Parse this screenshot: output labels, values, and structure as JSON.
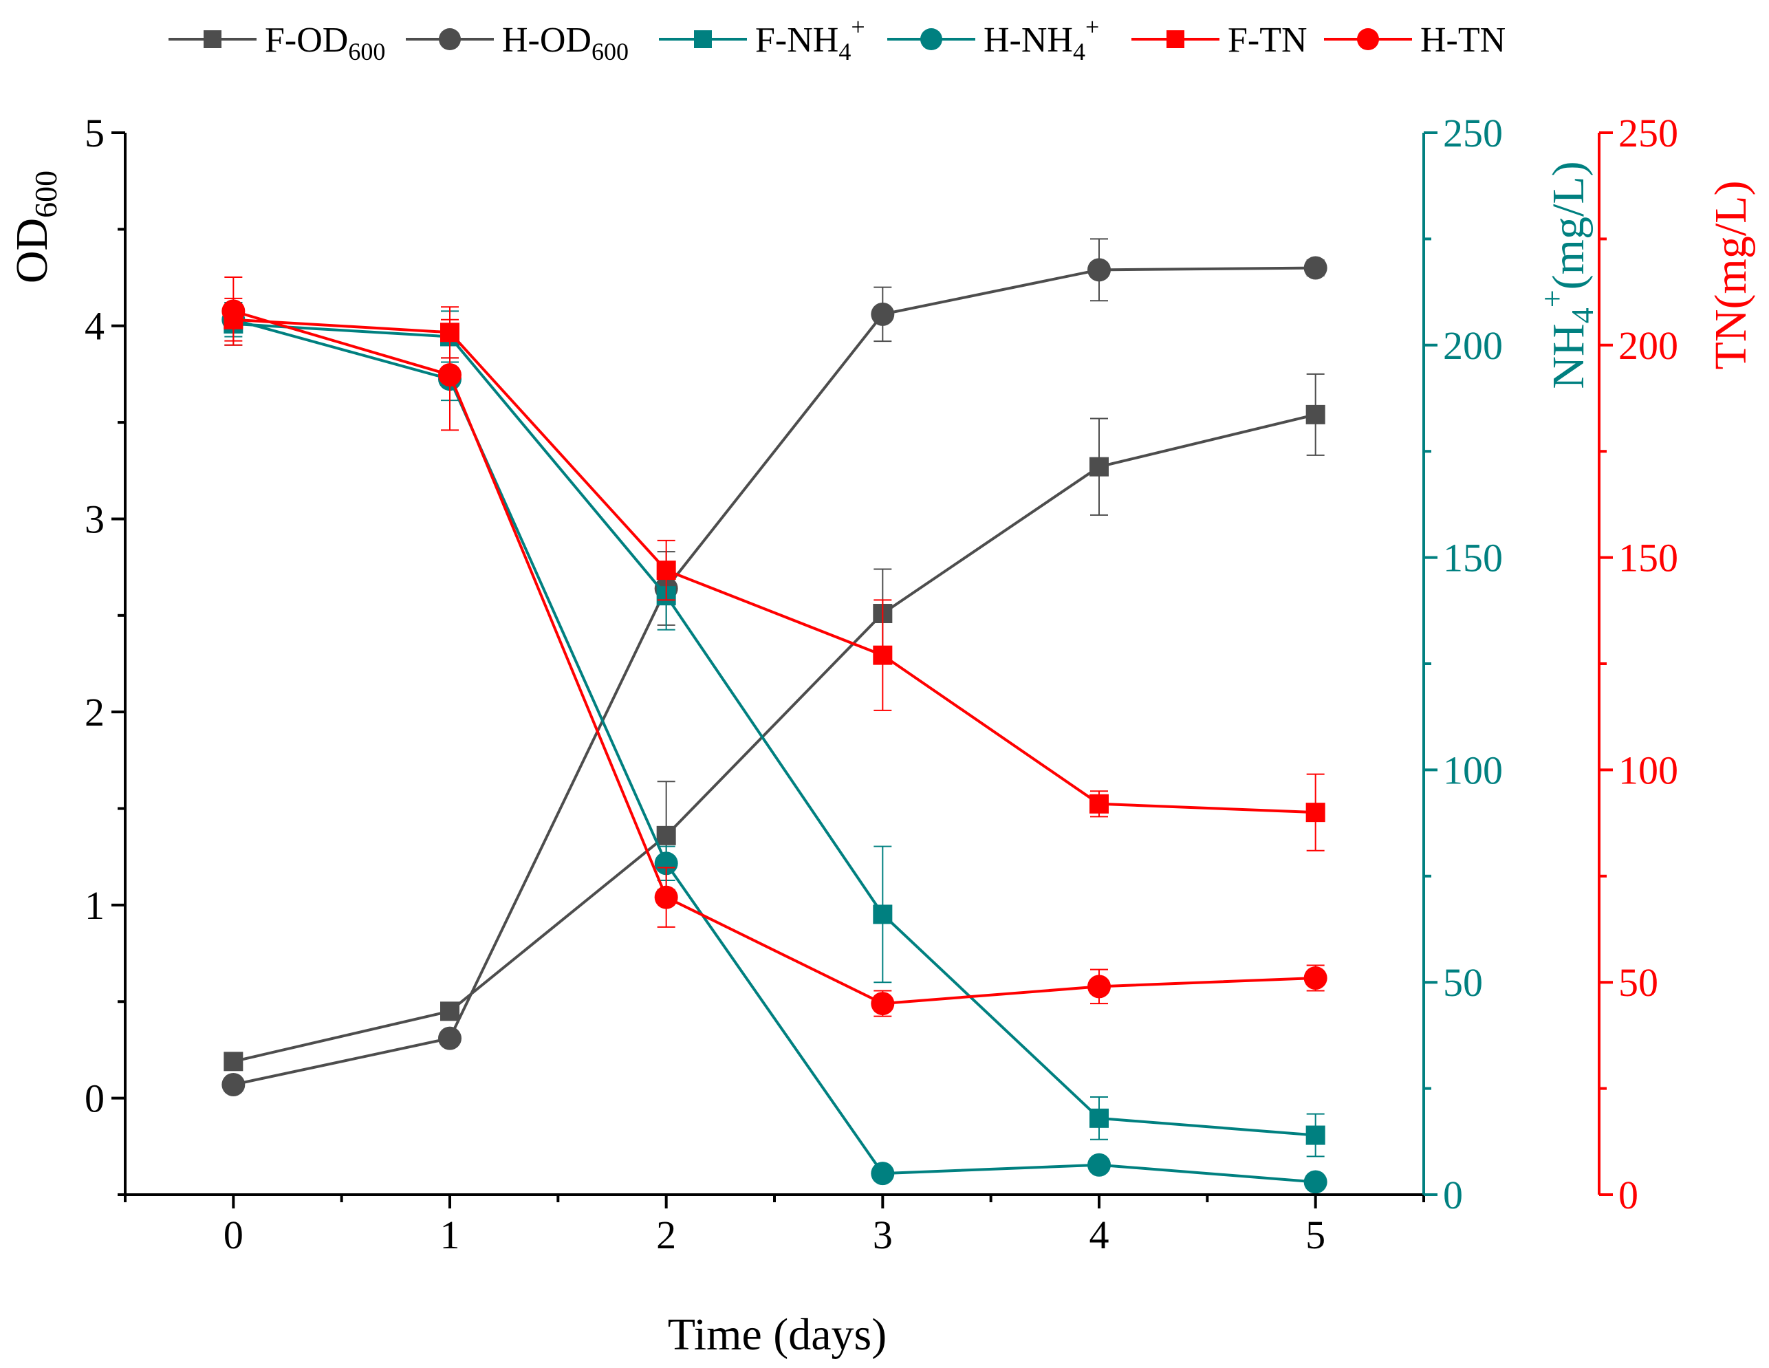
{
  "chart_data": {
    "type": "line",
    "title": "",
    "x": [
      0,
      1,
      2,
      3,
      4,
      5
    ],
    "xlabel": "Time (days)",
    "xlim": [
      -0.5,
      5.5
    ],
    "xticks": [
      "0",
      "1",
      "2",
      "3",
      "4",
      "5"
    ],
    "axes": {
      "left": {
        "label_main": "OD",
        "label_sub": "600",
        "range": [
          -0.5,
          5
        ],
        "ticks": [
          "0",
          "1",
          "2",
          "3",
          "4",
          "5"
        ],
        "color": "#000000"
      },
      "right1": {
        "label_pre": "NH",
        "label_sub": "4",
        "label_sup": "+",
        "label_post": "(mg/L)",
        "range": [
          0,
          250
        ],
        "ticks": [
          "0",
          "50",
          "100",
          "150",
          "200",
          "250"
        ],
        "color": "#008080"
      },
      "right2": {
        "label": "TN(mg/L)",
        "range": [
          0,
          250
        ],
        "ticks": [
          "0",
          "50",
          "100",
          "150",
          "200",
          "250"
        ],
        "color": "#ff0000"
      }
    },
    "series": [
      {
        "id": "f-od600",
        "name_main": "F-OD",
        "name_sub": "600",
        "name_sup": "",
        "axis": "left",
        "color": "#4d4d4d",
        "marker": "square",
        "values": [
          0.19,
          0.45,
          1.36,
          2.51,
          3.27,
          3.54
        ],
        "errors": [
          0.02,
          0.03,
          0.28,
          0.23,
          0.25,
          0.21
        ]
      },
      {
        "id": "h-od600",
        "name_main": "H-OD",
        "name_sub": "600",
        "name_sup": "",
        "axis": "left",
        "color": "#4d4d4d",
        "marker": "circle",
        "values": [
          0.07,
          0.31,
          2.64,
          4.06,
          4.29,
          4.3
        ],
        "errors": [
          0.02,
          0.03,
          0.19,
          0.14,
          0.16,
          0.04
        ]
      },
      {
        "id": "f-nh4",
        "name_main": "F-NH",
        "name_sub": "4",
        "name_sup": "+",
        "axis": "right1",
        "color": "#008080",
        "marker": "square",
        "values": [
          205,
          202,
          141,
          66,
          18,
          14
        ],
        "errors": [
          5,
          6,
          8,
          16,
          5,
          5
        ]
      },
      {
        "id": "h-nh4",
        "name_main": "H-NH",
        "name_sub": "4",
        "name_sup": "+",
        "axis": "right1",
        "color": "#008080",
        "marker": "circle",
        "values": [
          206,
          192,
          78,
          5,
          7,
          3
        ],
        "errors": [
          4,
          5,
          4,
          1,
          1,
          1
        ]
      },
      {
        "id": "f-tn",
        "name_main": "F-TN",
        "name_sub": "",
        "name_sup": "",
        "axis": "right2",
        "color": "#ff0000",
        "marker": "square",
        "values": [
          206,
          203,
          147,
          127,
          92,
          90
        ],
        "errors": [
          5,
          6,
          7,
          13,
          3,
          9
        ]
      },
      {
        "id": "h-tn",
        "name_main": "H-TN",
        "name_sub": "",
        "name_sup": "",
        "axis": "right2",
        "color": "#ff0000",
        "marker": "circle",
        "values": [
          208,
          193,
          70,
          45,
          49,
          51
        ],
        "errors": [
          8,
          13,
          7,
          3,
          4,
          3
        ]
      }
    ]
  }
}
